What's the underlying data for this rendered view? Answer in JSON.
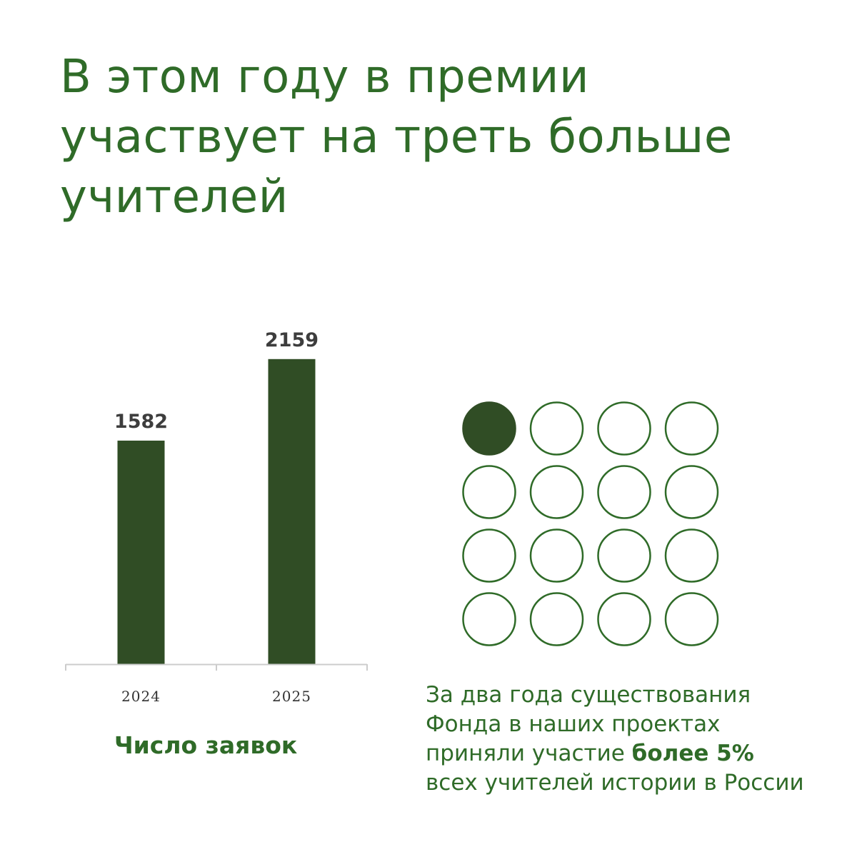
{
  "headline": {
    "lines": [
      "В этом году в премии",
      "участвует на треть больше",
      "учителей"
    ]
  },
  "chart_data": {
    "type": "bar",
    "categories": [
      "2024",
      "2025"
    ],
    "values": [
      1582,
      2159
    ],
    "title": "",
    "xlabel": "Число заявок",
    "ylabel": "",
    "ylim": [
      0,
      2350
    ],
    "grid": false,
    "legend": "none",
    "bar_color": "#304d25",
    "value_label_color": "#3d3d3d",
    "axis_color": "#cccccc"
  },
  "dot_grid": {
    "rows": 4,
    "cols": 4,
    "filled": 1,
    "total": 16,
    "fill_color": "#304d25",
    "outline_color": "#2f6b28"
  },
  "note": {
    "line1": "За два года существования",
    "line2": "Фонда в наших проектах",
    "line3_prefix": "приняли участие ",
    "line3_bold": "более 5%",
    "line4": "всех учителей истории в России"
  },
  "colors": {
    "green_text": "#2f6b28",
    "dark_green": "#304d25"
  }
}
